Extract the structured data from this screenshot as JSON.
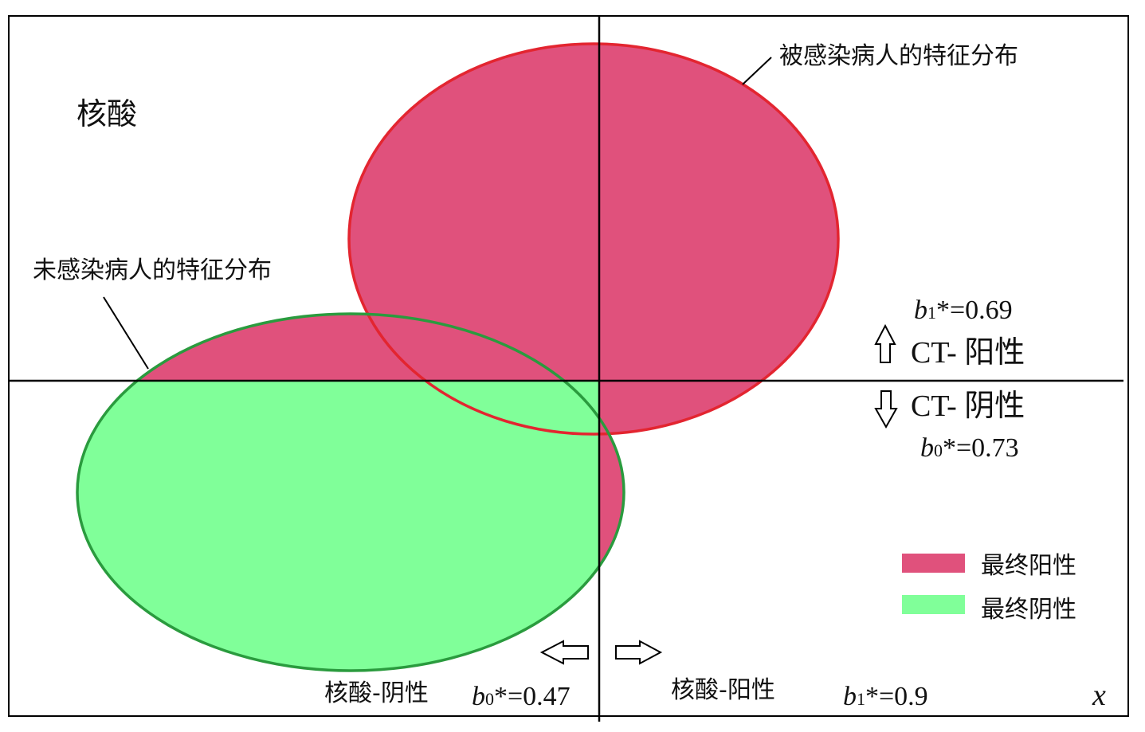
{
  "colors": {
    "final_positive": "#e0517c",
    "final_negative": "#80ff99",
    "infected_outline": "#e32530",
    "uninfected_outline": "#2a9b3e",
    "axes": "#000000"
  },
  "labels": {
    "y_axis": "核酸",
    "x_axis": "x",
    "infected_dist": "被感染病人的特征分布",
    "uninfected_dist": "未感染病人的特征分布",
    "ct_positive": "CT- 阳性",
    "ct_negative": "CT- 阴性",
    "na_negative": "核酸-阴性",
    "na_positive": "核酸-阳性"
  },
  "thresholds": {
    "ct_b1": {
      "var": "b",
      "sub": "1",
      "rest": "*=0.69"
    },
    "ct_b0": {
      "var": "b",
      "sub": "0",
      "rest": "*=0.73"
    },
    "na_b0": {
      "var": "b",
      "sub": "0",
      "rest": "*=0.47"
    },
    "na_b1": {
      "var": "b",
      "sub": "1",
      "rest": "*=0.9"
    }
  },
  "legend": [
    {
      "label": "最终阳性",
      "color": "#e0517c"
    },
    {
      "label": "最终阴性",
      "color": "#80ff99"
    }
  ]
}
